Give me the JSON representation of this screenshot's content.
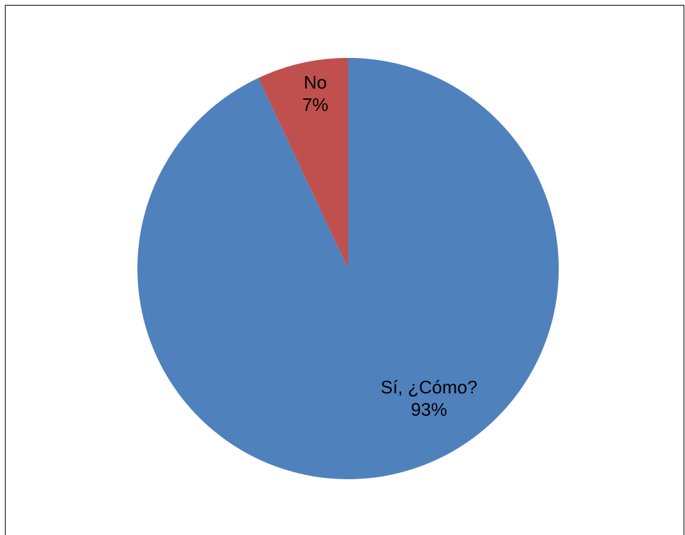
{
  "chart_data": {
    "type": "pie",
    "slices": [
      {
        "label": "Sí, ¿Cómo?",
        "value": 93,
        "value_label": "93%",
        "color": "#4F81BD"
      },
      {
        "label": "No",
        "value": 7,
        "value_label": "7%",
        "color": "#C0504D"
      }
    ],
    "start_angle_deg": 0,
    "direction": "clockwise",
    "legend": "none"
  }
}
